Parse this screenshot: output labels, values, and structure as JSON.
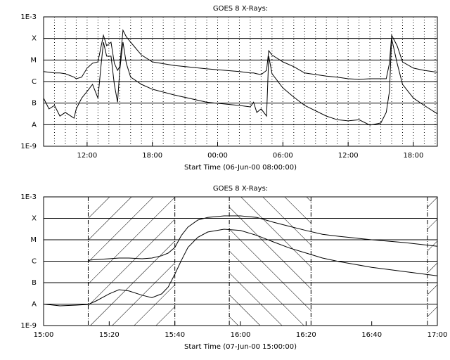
{
  "chart_data": [
    {
      "type": "line",
      "title": "GOES 8 X-Rays:",
      "x_label": "Start Time (06-Jun-00 08:00:00)",
      "log_y": true,
      "xgrid": "dotted",
      "xlim": [
        0,
        36.2
      ],
      "xticks": [
        {
          "value": 4,
          "label": "12:00"
        },
        {
          "value": 10,
          "label": "18:00"
        },
        {
          "value": 16,
          "label": "00:00"
        },
        {
          "value": 22,
          "label": "06:00"
        },
        {
          "value": 28,
          "label": "12:00"
        },
        {
          "value": 34,
          "label": "18:00"
        }
      ],
      "ylim": [
        1e-09,
        0.001
      ],
      "yticks": [
        {
          "value": 1e-09,
          "label": "1E-9"
        },
        {
          "value": 1e-08,
          "label": "A"
        },
        {
          "value": 1e-07,
          "label": "B"
        },
        {
          "value": 1e-06,
          "label": "C"
        },
        {
          "value": 1e-05,
          "label": "M"
        },
        {
          "value": 0.0001,
          "label": "X"
        },
        {
          "value": 0.001,
          "label": "1E-3"
        }
      ],
      "x": [
        0,
        0.5,
        1,
        1.5,
        2,
        2.8,
        3,
        3.5,
        4,
        4.5,
        5,
        5.3,
        5.5,
        5.8,
        6.2,
        6.5,
        6.8,
        7,
        7.3,
        7.6,
        8,
        9,
        10,
        12,
        15,
        18,
        19,
        19.3,
        19.6,
        20,
        20.5,
        20.7,
        21,
        22,
        23,
        24,
        26,
        27,
        28,
        29,
        30,
        31,
        31.5,
        31.8,
        32,
        32.5,
        33,
        34,
        35,
        36.2
      ],
      "series": [
        {
          "color": "#000000",
          "values": [
            2.9e-06,
            2.7e-06,
            2.5e-06,
            2.5e-06,
            2.3e-06,
            1.6e-06,
            1.35e-06,
            1.6e-06,
            4.2e-06,
            7.1e-06,
            8.2e-06,
            4.6e-05,
            0.00014,
            4.6e-05,
            6.7e-05,
            7.1e-06,
            3.3e-06,
            4.9e-06,
            0.00024,
            0.00012,
            6.7e-05,
            1.7e-05,
            8.2e-06,
            5.6e-06,
            3.9e-06,
            2.9e-06,
            2.5e-06,
            2.5e-06,
            2.3e-06,
            2.1e-06,
            3.3e-06,
            2.7e-05,
            1.7e-05,
            8.2e-06,
            4.9e-06,
            2.5e-06,
            1.8e-06,
            1.6e-06,
            1.35e-06,
            1.26e-06,
            1.35e-06,
            1.35e-06,
            1.35e-06,
            7.1e-06,
            0.00014,
            4.6e-05,
            8.2e-06,
            4.2e-06,
            3.3e-06,
            2.7e-06
          ]
        },
        {
          "color": "#000000",
          "values": [
            1.7e-07,
            5.4e-08,
            7.8e-08,
            2.5e-08,
            3.7e-08,
            2e-08,
            5.4e-08,
            1.7e-07,
            3.5e-07,
            7.4e-07,
            1.7e-07,
            7.1e-06,
            6.7e-05,
            1.5e-05,
            1.5e-05,
            7.4e-07,
            1.1e-07,
            3.3e-06,
            6.7e-05,
            7.1e-06,
            1.6e-06,
            7.4e-07,
            4.4e-07,
            2.4e-07,
            1.1e-07,
            7.8e-08,
            6.7e-08,
            1.1e-07,
            3.7e-08,
            5.4e-08,
            2.5e-08,
            1.5e-05,
            2.3e-06,
            5.1e-07,
            1.9e-07,
            7.8e-08,
            2.5e-08,
            1.7e-08,
            1.5e-08,
            1.7e-08,
            9.5e-09,
            1.2e-08,
            3.7e-08,
            3.5e-07,
            9.8e-05,
            7.1e-06,
            7.4e-07,
            1.7e-07,
            7.8e-08,
            3.2e-08
          ]
        }
      ]
    },
    {
      "type": "line",
      "title": "GOES 8 X-Rays:",
      "x_label": "Start Time (07-Jun-00 15:00:00)",
      "log_y": true,
      "xlim": [
        0,
        120
      ],
      "xticks": [
        {
          "value": 0,
          "label": "15:00"
        },
        {
          "value": 20,
          "label": "15:20"
        },
        {
          "value": 40,
          "label": "15:40"
        },
        {
          "value": 60,
          "label": "16:00"
        },
        {
          "value": 80,
          "label": "16:20"
        },
        {
          "value": 100,
          "label": "16:40"
        },
        {
          "value": 120,
          "label": "17:00"
        }
      ],
      "ylim": [
        1e-09,
        0.001
      ],
      "yticks": [
        {
          "value": 1e-09,
          "label": "1E-9"
        },
        {
          "value": 1e-08,
          "label": "A"
        },
        {
          "value": 1e-07,
          "label": "B"
        },
        {
          "value": 1e-06,
          "label": "C"
        },
        {
          "value": 1e-05,
          "label": "M"
        },
        {
          "value": 0.0001,
          "label": "X"
        },
        {
          "value": 0.001,
          "label": "1E-3"
        }
      ],
      "shaded_regions": [
        [
          13.6,
          40
        ],
        [
          56.6,
          81.5
        ],
        [
          117,
          120
        ]
      ],
      "x": [
        0,
        5,
        10,
        13.6,
        16,
        20,
        23,
        26,
        30,
        33,
        36,
        38,
        40,
        42,
        44,
        47,
        50,
        55,
        60,
        65,
        70,
        75,
        80,
        85,
        90,
        100,
        110,
        120
      ],
      "series": [
        {
          "color": "#000000",
          "values": [
            null,
            null,
            null,
            1.1e-06,
            1.2e-06,
            1.3e-06,
            1.4e-06,
            1.4e-06,
            1.3e-06,
            1.4e-06,
            1.8e-06,
            2.4e-06,
            4.4e-06,
            1.6e-05,
            3.9e-05,
            8.3e-05,
            0.00011,
            0.00013,
            0.00013,
            0.00011,
            6.6e-05,
            4.2e-05,
            2.7e-05,
            1.8e-05,
            1.45e-05,
            1e-05,
            7.4e-06,
            5e-06
          ]
        },
        {
          "color": "#000000",
          "values": [
            1e-08,
            8.3e-09,
            8.9e-09,
            9.6e-09,
            1.4e-08,
            3e-08,
            4.7e-08,
            4.1e-08,
            2.6e-08,
            2e-08,
            3e-08,
            6.3e-08,
            2.5e-07,
            1.1e-06,
            4.4e-06,
            1.3e-05,
            2.3e-05,
            3.1e-05,
            2.7e-05,
            1.6e-05,
            8e-06,
            4.1e-06,
            2.4e-06,
            1.4e-06,
            9.6e-07,
            5.2e-07,
            3.3e-07,
            2.1e-07
          ]
        }
      ]
    }
  ]
}
